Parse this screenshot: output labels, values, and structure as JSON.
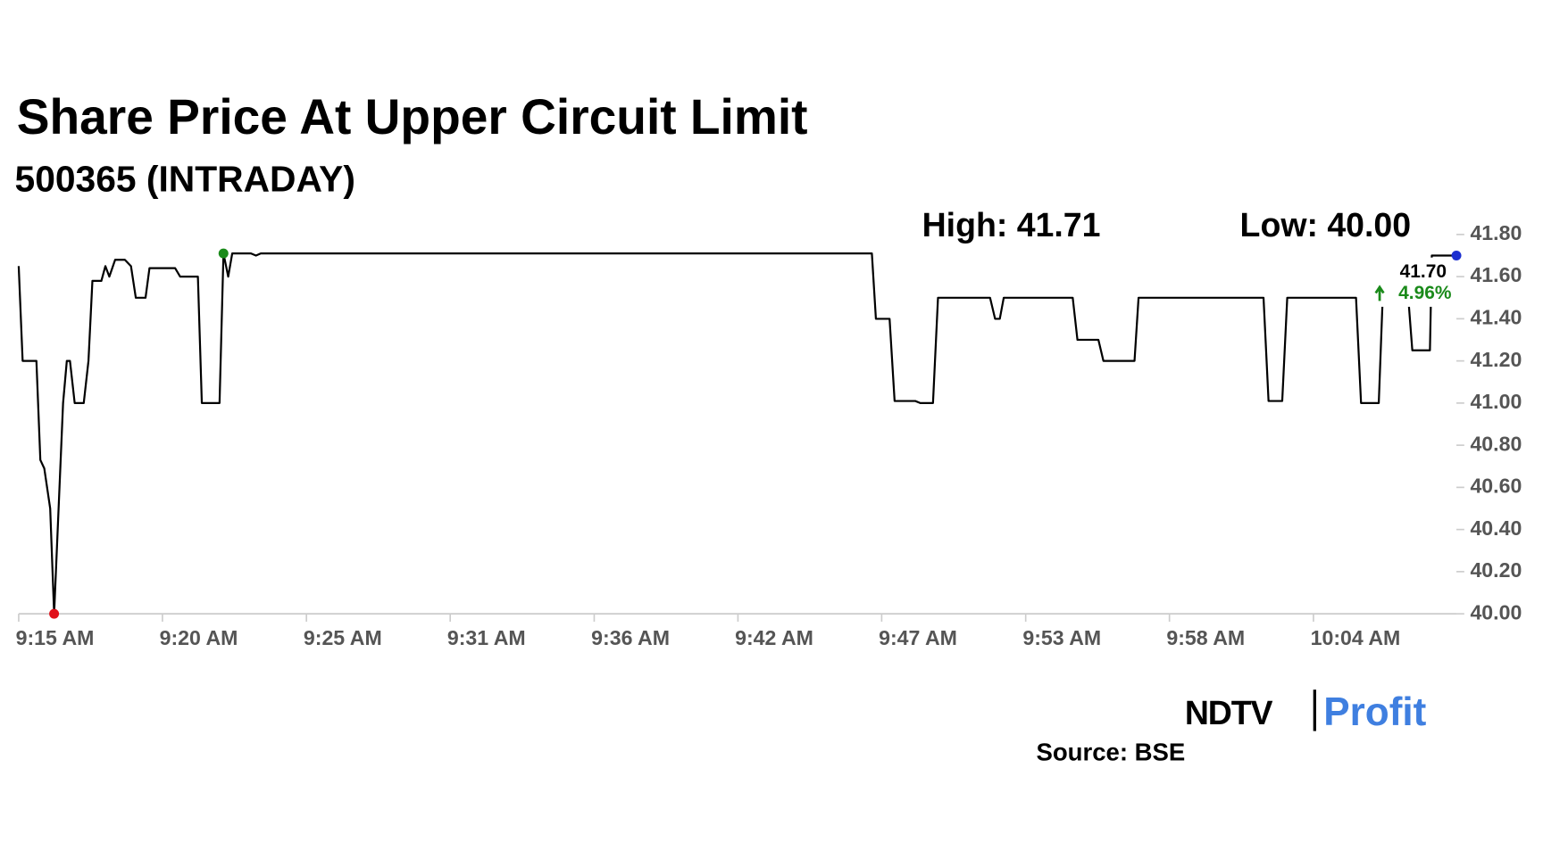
{
  "chart_data": {
    "type": "line",
    "title": "Share Price At Upper Circuit Limit",
    "subtitle": "500365 (INTRADAY)",
    "high_label": "High: 41.71",
    "low_label": "Low: 40.00",
    "last_label": "41.70",
    "change_label": "4.96%",
    "source": "Source: BSE",
    "logo": [
      "NDTV",
      "Profit"
    ],
    "line_color": "#000000",
    "high_color": "#1a8a1a",
    "low_color": "#e0101a",
    "last_color": "#1c2fd0",
    "xlim": [
      555,
      609.41
    ],
    "xticks": [
      {
        "value": 555,
        "label": "9:15 AM"
      },
      {
        "value": 560.44,
        "label": "9:20 AM"
      },
      {
        "value": 565.89,
        "label": "9:25 AM"
      },
      {
        "value": 571.33,
        "label": "9:31 AM"
      },
      {
        "value": 576.78,
        "label": "9:36 AM"
      },
      {
        "value": 582.22,
        "label": "9:42 AM"
      },
      {
        "value": 587.66,
        "label": "9:47 AM"
      },
      {
        "value": 593.11,
        "label": "9:53 AM"
      },
      {
        "value": 598.55,
        "label": "9:58 AM"
      },
      {
        "value": 604.0,
        "label": "10:04 AM"
      }
    ],
    "ylim": [
      40,
      41.8
    ],
    "yticks": [
      {
        "value": 40,
        "label": "40.00"
      },
      {
        "value": 40.2,
        "label": "40.20"
      },
      {
        "value": 40.4,
        "label": "40.40"
      },
      {
        "value": 40.6,
        "label": "40.60"
      },
      {
        "value": 40.8,
        "label": "40.80"
      },
      {
        "value": 41,
        "label": "41.00"
      },
      {
        "value": 41.2,
        "label": "41.20"
      },
      {
        "value": 41.4,
        "label": "41.40"
      },
      {
        "value": 41.6,
        "label": "41.60"
      },
      {
        "value": 41.8,
        "label": "41.80"
      }
    ],
    "x": [
      555.0,
      555.15,
      555.67,
      555.82,
      555.97,
      556.19,
      556.34,
      556.68,
      556.82,
      556.94,
      557.12,
      557.46,
      557.64,
      557.79,
      558.13,
      558.28,
      558.43,
      558.65,
      559.02,
      559.25,
      559.43,
      559.8,
      559.95,
      560.92,
      561.11,
      561.78,
      561.93,
      562.6,
      562.75,
      562.93,
      563.08,
      563.79,
      563.98,
      564.16,
      587.29,
      587.44,
      587.96,
      588.15,
      588.93,
      589.12,
      589.6,
      589.79,
      591.76,
      591.95,
      592.13,
      592.28,
      594.89,
      595.07,
      595.86,
      596.05,
      597.23,
      597.38,
      602.11,
      602.3,
      602.82,
      603.01,
      605.61,
      605.8,
      606.47,
      606.62,
      607.59,
      607.74,
      608.41,
      608.48,
      609.41
    ],
    "values": [
      41.65,
      41.2,
      41.2,
      40.73,
      40.69,
      40.5,
      40.0,
      41.0,
      41.2,
      41.2,
      41.0,
      41.0,
      41.2,
      41.58,
      41.58,
      41.65,
      41.6,
      41.68,
      41.68,
      41.65,
      41.5,
      41.5,
      41.64,
      41.64,
      41.6,
      41.6,
      41.0,
      41.0,
      41.71,
      41.6,
      41.71,
      41.71,
      41.7,
      41.71,
      41.71,
      41.4,
      41.4,
      41.01,
      41.01,
      41.0,
      41.0,
      41.5,
      41.5,
      41.4,
      41.4,
      41.5,
      41.5,
      41.3,
      41.3,
      41.2,
      41.2,
      41.5,
      41.5,
      41.01,
      41.01,
      41.5,
      41.5,
      41.0,
      41.0,
      41.5,
      41.5,
      41.25,
      41.25,
      41.7,
      41.7
    ]
  }
}
